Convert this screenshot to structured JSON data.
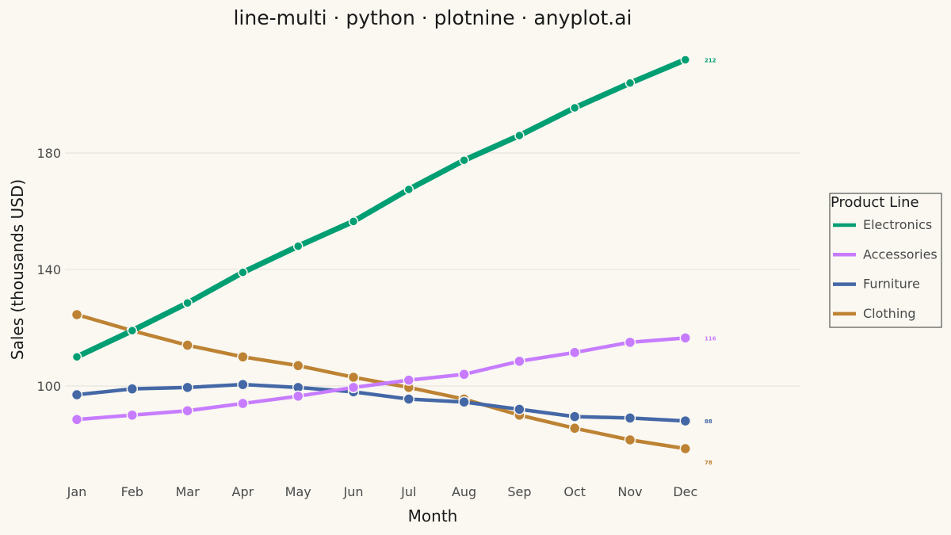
{
  "chart_data": {
    "type": "line",
    "title": "line-multi · python · plotnine · anyplot.ai",
    "xlabel": "Month",
    "ylabel": "Sales (thousands USD)",
    "categories": [
      "Jan",
      "Feb",
      "Mar",
      "Apr",
      "May",
      "Jun",
      "Jul",
      "Aug",
      "Sep",
      "Oct",
      "Nov",
      "Dec"
    ],
    "yticks": [
      100,
      140,
      180
    ],
    "ylim": [
      68,
      221
    ],
    "grid": true,
    "legend": {
      "title": "Product Line",
      "placement": "right"
    },
    "series": [
      {
        "name": "Electronics",
        "color": "#009E73",
        "values": [
          110,
          119,
          128.5,
          139,
          148,
          156.5,
          167.5,
          177.5,
          186,
          195.5,
          204,
          212
        ],
        "end_label": "212"
      },
      {
        "name": "Accessories",
        "color": "#C77CFF",
        "values": [
          88.5,
          90,
          91.5,
          94,
          96.5,
          99.5,
          102,
          104,
          108.5,
          111.5,
          115,
          116.5
        ],
        "end_label": "116"
      },
      {
        "name": "Furniture",
        "color": "#4467A6",
        "values": [
          97,
          99,
          99.5,
          100.5,
          99.5,
          98,
          95.5,
          94.5,
          92,
          89.5,
          89,
          88
        ],
        "end_label": "88"
      },
      {
        "name": "Clothing",
        "color": "#BD8233",
        "values": [
          124.5,
          119,
          114,
          110,
          107,
          103,
          99.5,
          95.5,
          90,
          85.5,
          81.5,
          78.5
        ],
        "end_label": "78"
      }
    ]
  }
}
